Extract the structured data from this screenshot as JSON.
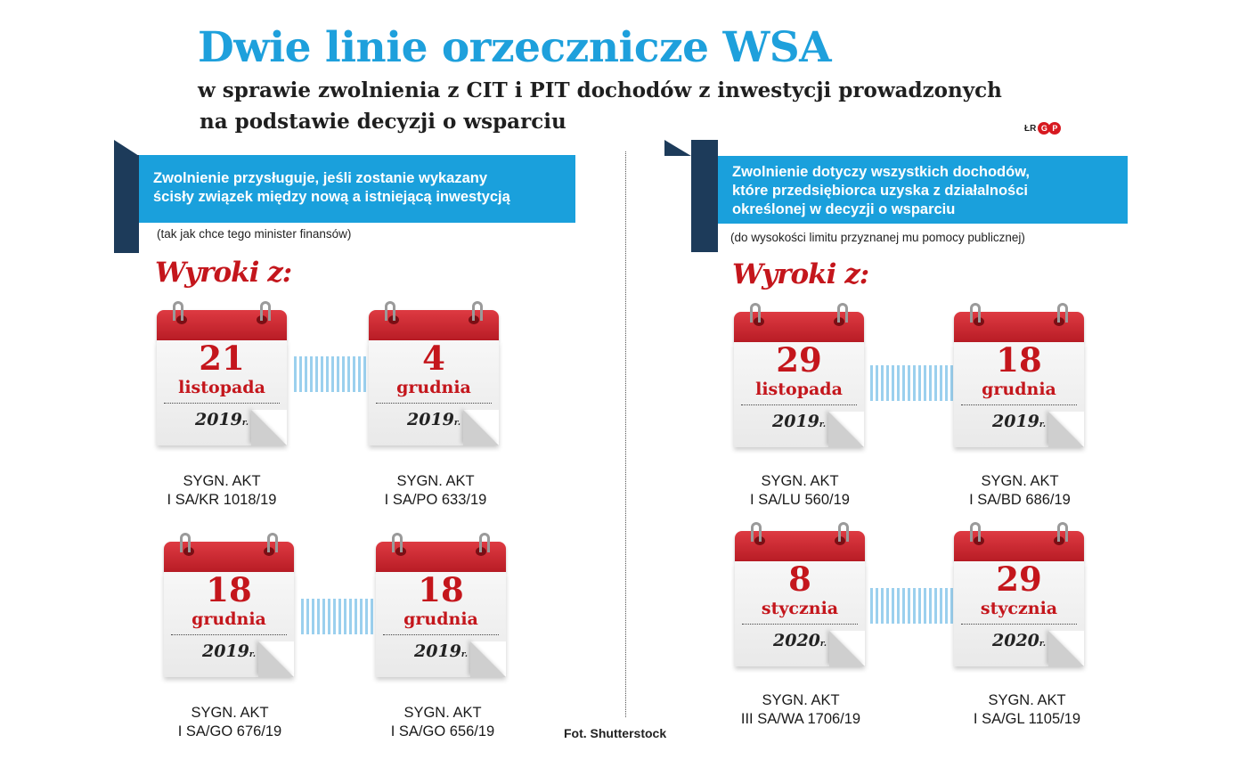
{
  "title": "Dwie linie orzecznicze WSA",
  "subtitle_line1": "w sprawie zwolnienia z CIT i PIT dochodów z inwestycji  prowadzonych",
  "subtitle_line2": "na podstawie  decyzji o wsparciu",
  "credit": {
    "initials": "ŁR",
    "logo": [
      "G",
      "P"
    ]
  },
  "left": {
    "box_lines": [
      "Zwolnienie przysługuje, jeśli zostanie wykazany",
      "ścisły związek między nową a istniejącą inwestycją"
    ],
    "note": "(tak jak chce tego minister finansów)",
    "wyroki": "Wyroki z:",
    "rulings": [
      {
        "day": "21",
        "month": "listopada",
        "year": "2019",
        "year_suffix": "r.",
        "sygn_label": "SYGN. AKT",
        "sygn": "I SA/KR 1018/19"
      },
      {
        "day": "4",
        "month": "grudnia",
        "year": "2019",
        "year_suffix": "r.",
        "sygn_label": "SYGN. AKT",
        "sygn": "I SA/PO 633/19"
      },
      {
        "day": "18",
        "month": "grudnia",
        "year": "2019",
        "year_suffix": "r.",
        "sygn_label": "SYGN. AKT",
        "sygn": "I SA/GO 676/19"
      },
      {
        "day": "18",
        "month": "grudnia",
        "year": "2019",
        "year_suffix": "r.",
        "sygn_label": "SYGN. AKT",
        "sygn": "I SA/GO 656/19"
      }
    ]
  },
  "right": {
    "box_lines": [
      "Zwolnienie dotyczy wszystkich dochodów,",
      "które przedsiębiorca  uzyska z działalności",
      "określonej w decyzji o wsparciu"
    ],
    "note": "(do wysokości limitu przyznanej mu pomocy publicznej)",
    "wyroki": "Wyroki z:",
    "rulings": [
      {
        "day": "29",
        "month": "listopada",
        "year": "2019",
        "year_suffix": "r.",
        "sygn_label": "SYGN. AKT",
        "sygn": "I SA/LU 560/19"
      },
      {
        "day": "18",
        "month": "grudnia",
        "year": "2019",
        "year_suffix": "r.",
        "sygn_label": "SYGN. AKT",
        "sygn": "I SA/BD 686/19"
      },
      {
        "day": "8",
        "month": "stycznia",
        "year": "2020",
        "year_suffix": "r.",
        "sygn_label": "SYGN. AKT",
        "sygn": "III SA/WA 1706/19"
      },
      {
        "day": "29",
        "month": "stycznia",
        "year": "2020",
        "year_suffix": "r.",
        "sygn_label": "SYGN. AKT",
        "sygn": "I SA/GL 1105/19"
      }
    ]
  },
  "photo_credit": "Fot. Shutterstock",
  "colors": {
    "title_blue": "#1ea0dc",
    "box_blue": "#1aa0dc",
    "calendar_red": "#c4161c",
    "tab_navy": "#1d3b5a"
  }
}
